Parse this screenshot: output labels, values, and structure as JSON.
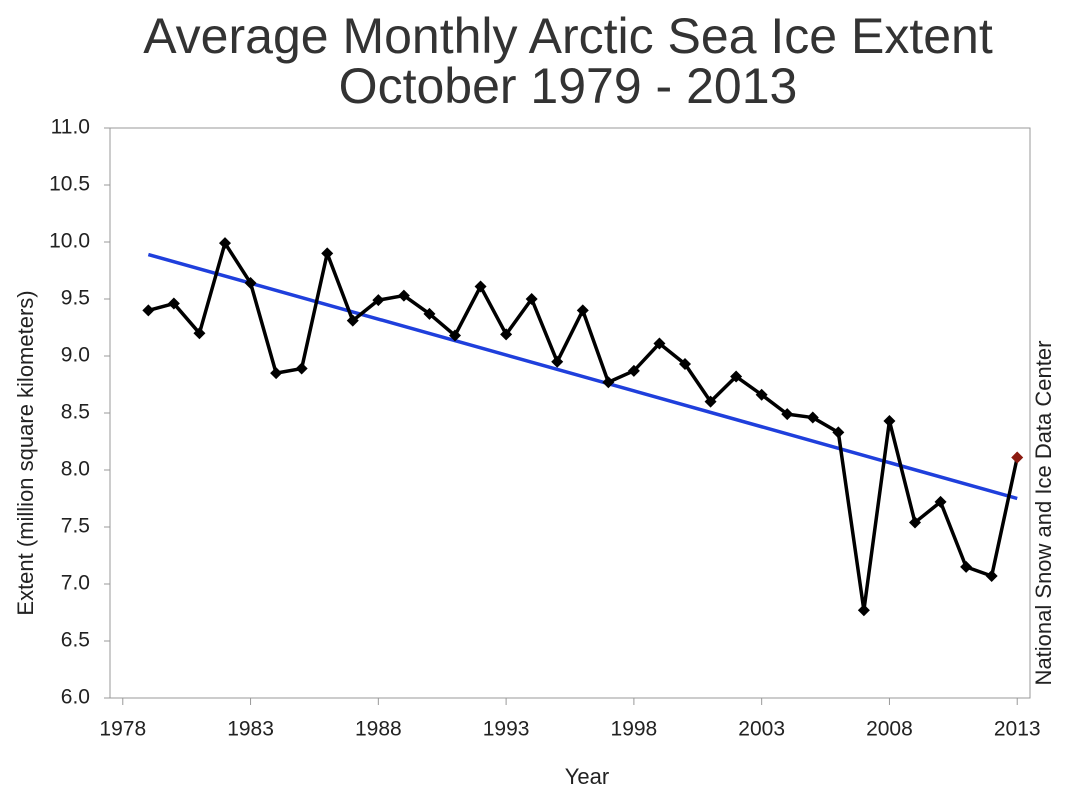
{
  "chart_data": {
    "type": "line",
    "title": "Average Monthly Arctic Sea Ice Extent",
    "subtitle": "October 1979 - 2013",
    "x_label": "Year",
    "y_label": "Extent (million square kilometers)",
    "annotation": "National Snow and Ice Data Center",
    "x": [
      1979,
      1980,
      1981,
      1982,
      1983,
      1984,
      1985,
      1986,
      1987,
      1988,
      1989,
      1990,
      1991,
      1992,
      1993,
      1994,
      1995,
      1996,
      1997,
      1998,
      1999,
      2000,
      2001,
      2002,
      2003,
      2004,
      2005,
      2006,
      2007,
      2008,
      2009,
      2010,
      2011,
      2012,
      2013
    ],
    "series": [
      {
        "color": "#000000",
        "last_point_color": "#8b1a10",
        "values": [
          9.4,
          9.46,
          9.2,
          9.99,
          9.64,
          8.85,
          8.89,
          9.9,
          9.31,
          9.49,
          9.53,
          9.37,
          9.18,
          9.61,
          9.19,
          9.5,
          8.95,
          9.4,
          8.77,
          8.87,
          9.11,
          8.93,
          8.6,
          8.82,
          8.66,
          8.49,
          8.46,
          8.33,
          6.77,
          8.43,
          7.54,
          7.72,
          7.15,
          7.07,
          8.11
        ]
      }
    ],
    "trend": {
      "x": [
        1979,
        2013
      ],
      "values": [
        9.89,
        7.75
      ],
      "color": "#1f3fdc"
    },
    "xlim": [
      1977.5,
      2013.5
    ],
    "xticks": [
      1978,
      1983,
      1988,
      1993,
      1998,
      2003,
      2008,
      2013
    ],
    "ylim": [
      6,
      11
    ],
    "yticks": [
      {
        "value": 6,
        "label": "6.0"
      },
      6.5,
      {
        "value": 7,
        "label": "7.0"
      },
      7.5,
      {
        "value": 8,
        "label": "8.0"
      },
      8.5,
      {
        "value": 9,
        "label": "9.0"
      },
      9.5,
      {
        "value": 10,
        "label": "10.0"
      },
      10.5,
      {
        "value": 11,
        "label": "11.0"
      }
    ],
    "grid": false
  }
}
